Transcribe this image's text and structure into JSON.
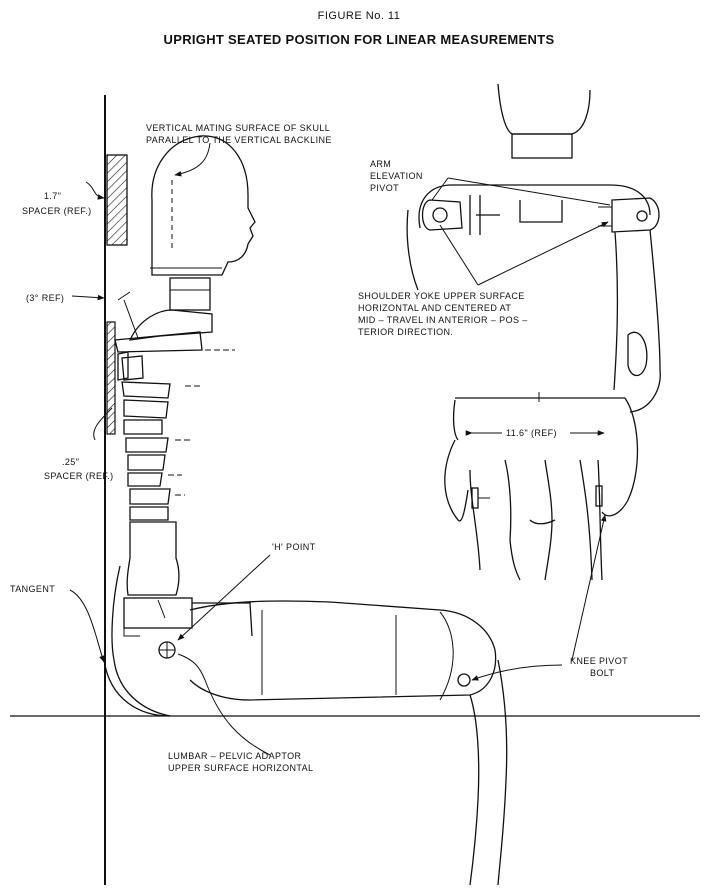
{
  "figure": {
    "number_label": "FIGURE No. 11",
    "title": "UPRIGHT SEATED POSITION FOR LINEAR MEASUREMENTS"
  },
  "labels": {
    "skull_surface": [
      "VERTICAL MATING SURFACE OF SKULL",
      "PARALLEL TO THE VERTICAL BACKLINE"
    ],
    "spacer_top_value": "1.7\"",
    "spacer_top_name": "SPACER (REF.)",
    "angle_ref": "(3° REF)",
    "spacer_low_value": ".25\"",
    "spacer_low_name": "SPACER (REF.)",
    "arm_pivot": [
      "ARM",
      "ELEVATION",
      "PIVOT"
    ],
    "shoulder_yoke": [
      "SHOULDER YOKE UPPER SURFACE",
      "HORIZONTAL AND CENTERED AT",
      "MID – TRAVEL IN ANTERIOR – POS –",
      "TERIOR DIRECTION."
    ],
    "knee_width": "11.6\" (REF)",
    "h_point": "'H' POINT",
    "tangent": "TANGENT",
    "knee_pivot": [
      "KNEE PIVOT",
      "BOLT"
    ],
    "lumbar": [
      "LUMBAR – PELVIC ADAPTOR",
      "UPPER SURFACE HORIZONTAL"
    ]
  }
}
